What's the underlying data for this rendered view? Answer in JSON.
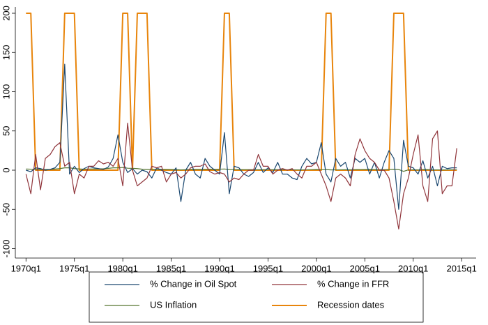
{
  "chart_data": {
    "type": "line",
    "x": [
      1970,
      1970.5,
      1971,
      1971.5,
      1972,
      1972.5,
      1973,
      1973.5,
      1974,
      1974.5,
      1975,
      1975.5,
      1976,
      1976.5,
      1977,
      1977.5,
      1978,
      1978.5,
      1979,
      1979.5,
      1980,
      1980.5,
      1981,
      1981.5,
      1982,
      1982.5,
      1983,
      1983.5,
      1984,
      1984.5,
      1985,
      1985.5,
      1986,
      1986.5,
      1987,
      1987.5,
      1988,
      1988.5,
      1989,
      1989.5,
      1990,
      1990.5,
      1991,
      1991.5,
      1992,
      1992.5,
      1993,
      1993.5,
      1994,
      1994.5,
      1995,
      1995.5,
      1996,
      1996.5,
      1997,
      1997.5,
      1998,
      1998.5,
      1999,
      1999.5,
      2000,
      2000.5,
      2001,
      2001.5,
      2002,
      2002.5,
      2003,
      2003.5,
      2004,
      2004.5,
      2005,
      2005.5,
      2006,
      2006.5,
      2007,
      2007.5,
      2008,
      2008.5,
      2009,
      2009.5,
      2010,
      2010.5,
      2011,
      2011.5,
      2012,
      2012.5,
      2013,
      2013.5,
      2014,
      2014.5
    ],
    "series": [
      {
        "name": "% Change in Oil Spot",
        "color": "#1a476f",
        "values": [
          0,
          -2,
          3,
          2,
          0,
          1,
          3,
          10,
          135,
          -5,
          5,
          -3,
          2,
          5,
          3,
          2,
          1,
          4,
          15,
          45,
          10,
          -3,
          2,
          -5,
          0,
          -2,
          -10,
          3,
          0,
          -3,
          -5,
          3,
          -40,
          0,
          10,
          -5,
          -10,
          15,
          5,
          0,
          -5,
          48,
          -30,
          5,
          3,
          -5,
          -8,
          -3,
          10,
          -3,
          3,
          -3,
          10,
          -5,
          -5,
          -10,
          -12,
          5,
          15,
          8,
          10,
          35,
          -5,
          -15,
          15,
          5,
          10,
          -10,
          15,
          10,
          15,
          -5,
          10,
          -10,
          10,
          25,
          15,
          -50,
          38,
          5,
          3,
          -5,
          12,
          -10,
          5,
          -20,
          5,
          2,
          3,
          3
        ]
      },
      {
        "name": "% Change in FFR",
        "color": "#90353b",
        "values": [
          -5,
          -30,
          20,
          -25,
          15,
          20,
          30,
          35,
          5,
          10,
          -30,
          -5,
          -10,
          5,
          5,
          12,
          8,
          10,
          5,
          15,
          -20,
          60,
          0,
          -20,
          -15,
          -10,
          5,
          3,
          5,
          -15,
          -5,
          -3,
          -10,
          -5,
          3,
          5,
          5,
          8,
          -2,
          -5,
          -3,
          -5,
          -15,
          -10,
          -12,
          -5,
          0,
          0,
          20,
          5,
          5,
          -5,
          0,
          2,
          0,
          2,
          -5,
          -10,
          5,
          5,
          10,
          -5,
          -20,
          -40,
          -10,
          -5,
          -10,
          -20,
          20,
          40,
          25,
          15,
          10,
          0,
          0,
          -10,
          -40,
          -75,
          -30,
          -10,
          20,
          45,
          -20,
          -40,
          40,
          50,
          -30,
          -20,
          -20,
          28
        ]
      },
      {
        "name": "US Inflation",
        "color": "#55752f",
        "values": [
          1.5,
          1.3,
          1.1,
          1,
          0.9,
          1,
          1.5,
          2,
          3,
          3,
          2,
          1.6,
          1.3,
          1.5,
          1.6,
          1.5,
          1.8,
          2.3,
          3,
          3,
          3.5,
          2.5,
          2.3,
          2,
          1.2,
          1,
          0.9,
          1,
          1.1,
          1,
          0.9,
          0.8,
          0.3,
          0.6,
          1,
          1,
          1,
          1.1,
          1.2,
          1,
          1.3,
          1.5,
          0.8,
          0.7,
          0.8,
          0.7,
          0.7,
          0.7,
          0.6,
          0.7,
          0.7,
          0.6,
          0.7,
          0.6,
          0.5,
          0.5,
          0.4,
          0.4,
          0.5,
          0.7,
          0.9,
          0.7,
          0.8,
          0.3,
          0.4,
          0.5,
          0.6,
          0.5,
          0.8,
          0.8,
          0.9,
          1,
          0.8,
          0.7,
          0.7,
          0.9,
          1.2,
          0.8,
          -1.5,
          0.4,
          0.5,
          0.3,
          0.9,
          0.8,
          0.4,
          0.4,
          0.3,
          0.4,
          0.5,
          0.5
        ]
      },
      {
        "name": "Recession dates",
        "color": "#e8850c",
        "values": [
          200,
          200,
          0,
          0,
          0,
          0,
          0,
          0,
          200,
          200,
          200,
          0,
          0,
          0,
          0,
          0,
          0,
          0,
          0,
          0,
          200,
          200,
          0,
          200,
          200,
          200,
          0,
          0,
          0,
          0,
          0,
          0,
          0,
          0,
          0,
          0,
          0,
          0,
          0,
          0,
          0,
          200,
          200,
          0,
          0,
          0,
          0,
          0,
          0,
          0,
          0,
          0,
          0,
          0,
          0,
          0,
          0,
          0,
          0,
          0,
          0,
          0,
          200,
          200,
          0,
          0,
          0,
          0,
          0,
          0,
          0,
          0,
          0,
          0,
          0,
          0,
          200,
          200,
          200,
          0,
          0,
          0,
          0,
          0,
          0,
          0,
          0,
          0,
          0,
          0
        ]
      }
    ],
    "xlim": [
      1968.9,
      2016.5
    ],
    "xticks": [
      {
        "value": 1970,
        "label": "1970q1"
      },
      {
        "value": 1975,
        "label": "1975q1"
      },
      {
        "value": 1980,
        "label": "1980q1"
      },
      {
        "value": 1985,
        "label": "1985q1"
      },
      {
        "value": 1990,
        "label": "1990q1"
      },
      {
        "value": 1995,
        "label": "1995q1"
      },
      {
        "value": 2000,
        "label": "2000q1"
      },
      {
        "value": 2005,
        "label": "2005q1"
      },
      {
        "value": 2010,
        "label": "2010q1"
      },
      {
        "value": 2015,
        "label": "2015q1"
      }
    ],
    "ylim": [
      -112,
      208
    ],
    "yticks": [
      -100,
      -50,
      0,
      50,
      100,
      150,
      200
    ],
    "grid": false
  }
}
